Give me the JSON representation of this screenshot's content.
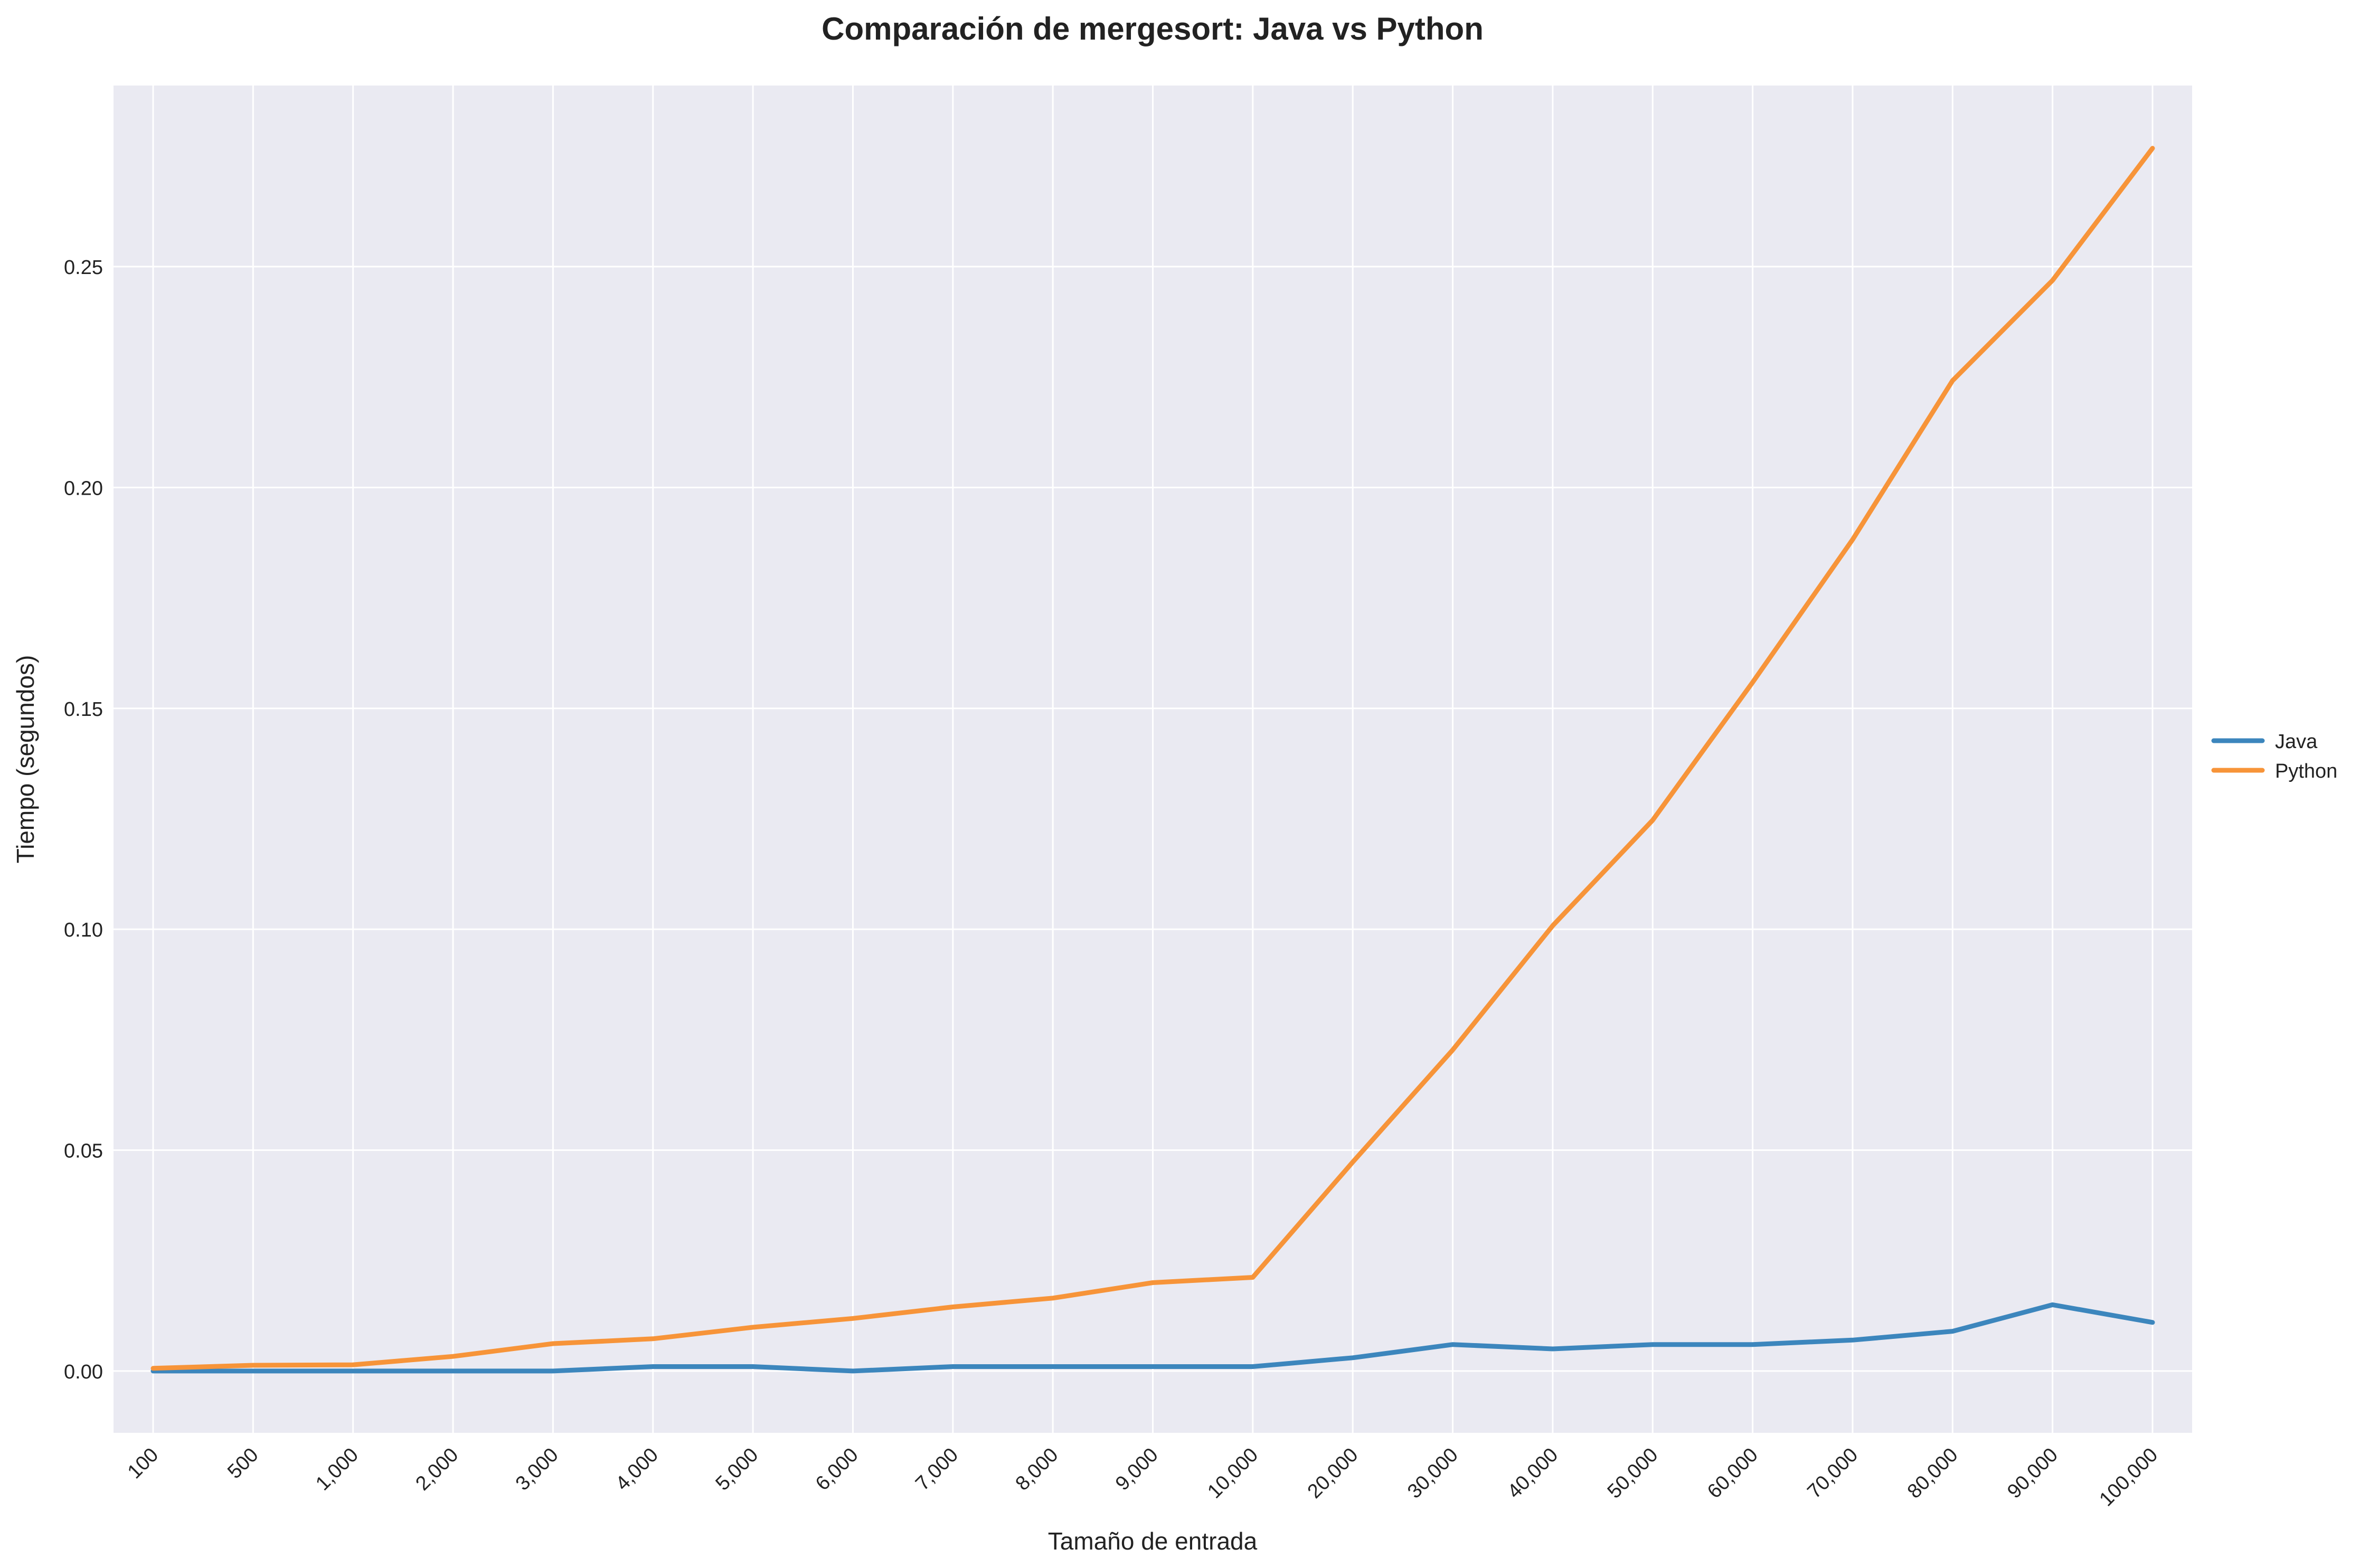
{
  "chart_data": {
    "type": "line",
    "title": "Comparación de mergesort: Java vs Python",
    "xlabel": "Tamaño de entrada",
    "ylabel": "Tiempo (segundos)",
    "categories": [
      "100",
      "500",
      "1,000",
      "2,000",
      "3,000",
      "4,000",
      "5,000",
      "6,000",
      "7,000",
      "8,000",
      "9,000",
      "10,000",
      "20,000",
      "30,000",
      "40,000",
      "50,000",
      "60,000",
      "70,000",
      "80,000",
      "90,000",
      "100,000"
    ],
    "yticks": [
      "0.00",
      "0.05",
      "0.10",
      "0.15",
      "0.20",
      "0.25"
    ],
    "ylim": [
      -0.014,
      0.291
    ],
    "grid": true,
    "legend_position": "right",
    "series": [
      {
        "name": "Java",
        "color": "#3c86bd",
        "values": [
          0.0,
          0.0,
          0.0,
          0.0,
          0.0,
          0.001,
          0.001,
          0.0,
          0.001,
          0.001,
          0.001,
          0.001,
          0.003,
          0.006,
          0.005,
          0.006,
          0.006,
          0.007,
          0.009,
          0.015,
          0.011
        ]
      },
      {
        "name": "Python",
        "color": "#f79439",
        "values": [
          0.0006,
          0.0013,
          0.0014,
          0.0033,
          0.0062,
          0.0073,
          0.0099,
          0.0119,
          0.0145,
          0.0165,
          0.02,
          0.0212,
          0.0473,
          0.0727,
          0.1008,
          0.1247,
          0.1559,
          0.1882,
          0.2242,
          0.2469,
          0.2768
        ]
      }
    ],
    "colors": {
      "plot_background": "#eaeaf2",
      "grid": "#ffffff",
      "text": "#222222"
    }
  }
}
